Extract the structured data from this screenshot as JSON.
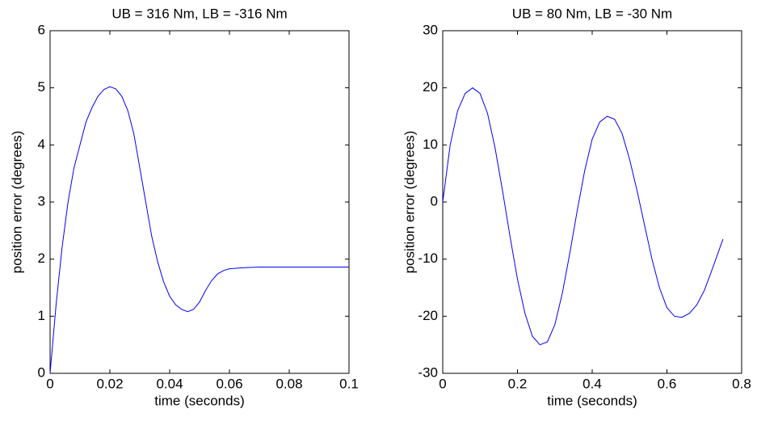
{
  "chart_data": [
    {
      "type": "line",
      "title": "UB = 316 Nm, LB = -316 Nm",
      "x_label": "time (seconds)",
      "y_label": "position error (degrees)",
      "x": [
        0,
        0.002,
        0.004,
        0.006,
        0.008,
        0.01,
        0.012,
        0.014,
        0.016,
        0.018,
        0.02,
        0.022,
        0.024,
        0.026,
        0.028,
        0.03,
        0.032,
        0.034,
        0.036,
        0.038,
        0.04,
        0.042,
        0.044,
        0.046,
        0.048,
        0.05,
        0.052,
        0.054,
        0.056,
        0.058,
        0.06,
        0.065,
        0.07,
        0.08,
        0.09,
        0.1
      ],
      "y": [
        0,
        1.2,
        2.2,
        3.0,
        3.6,
        4.0,
        4.4,
        4.65,
        4.85,
        4.97,
        5.02,
        4.98,
        4.85,
        4.6,
        4.2,
        3.6,
        3.0,
        2.4,
        1.95,
        1.6,
        1.35,
        1.2,
        1.12,
        1.08,
        1.12,
        1.25,
        1.45,
        1.62,
        1.74,
        1.8,
        1.83,
        1.85,
        1.86,
        1.86,
        1.86,
        1.86
      ],
      "color": "#0000ff",
      "xlim": [
        0,
        0.1
      ],
      "xticks": [
        0,
        0.02,
        0.04,
        0.06,
        0.08,
        0.1
      ],
      "ylim": [
        0,
        6
      ],
      "yticks": [
        0,
        1,
        2,
        3,
        4,
        5,
        6
      ]
    },
    {
      "type": "line",
      "title": "UB = 80 Nm, LB = -30 Nm",
      "x_label": "time (seconds)",
      "y_label": "position error (degrees)",
      "x": [
        0,
        0.02,
        0.04,
        0.06,
        0.08,
        0.1,
        0.12,
        0.14,
        0.16,
        0.18,
        0.2,
        0.22,
        0.24,
        0.26,
        0.28,
        0.3,
        0.32,
        0.34,
        0.36,
        0.38,
        0.4,
        0.42,
        0.44,
        0.46,
        0.48,
        0.5,
        0.52,
        0.54,
        0.56,
        0.58,
        0.6,
        0.62,
        0.64,
        0.66,
        0.68,
        0.7,
        0.72,
        0.75
      ],
      "y": [
        0,
        10,
        16,
        19,
        20,
        19,
        15.5,
        9.5,
        2,
        -6,
        -13.5,
        -19.5,
        -23.5,
        -25,
        -24.5,
        -21.5,
        -16,
        -9,
        -1.5,
        5.5,
        11,
        14,
        15,
        14.5,
        12,
        7.5,
        2,
        -4,
        -10,
        -15,
        -18.5,
        -20,
        -20.2,
        -19.5,
        -18,
        -15.5,
        -12,
        -6.5
      ],
      "color": "#0000ff",
      "xlim": [
        0,
        0.8
      ],
      "xticks": [
        0,
        0.2,
        0.4,
        0.6,
        0.8
      ],
      "ylim": [
        -30,
        30
      ],
      "yticks": [
        -30,
        -20,
        -10,
        0,
        10,
        20,
        30
      ]
    }
  ]
}
